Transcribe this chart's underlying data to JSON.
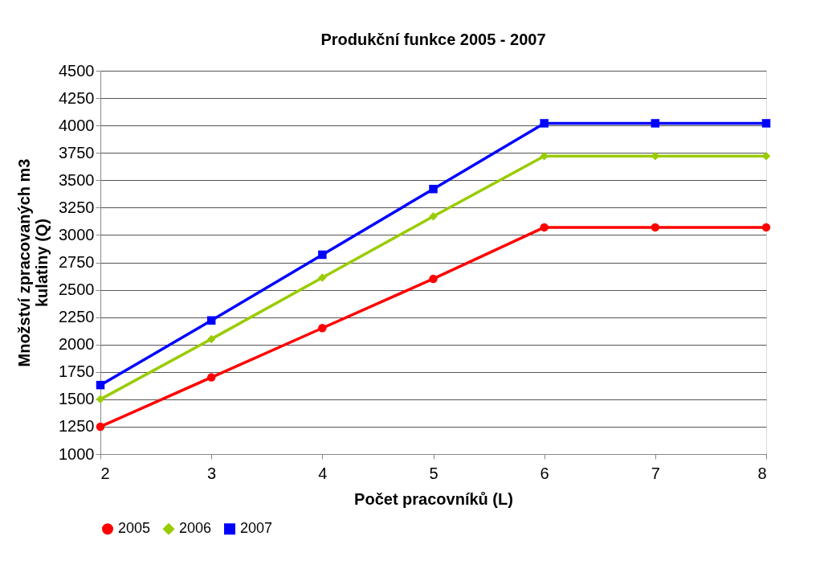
{
  "chart_data": {
    "type": "line",
    "title": "Produkční funkce 2005 - 2007",
    "xlabel": "Počet pracovníků (L)",
    "ylabel": "Množství zpracovaných m3 kulatiny (Q)",
    "x": [
      2,
      3,
      4,
      5,
      6,
      7,
      8
    ],
    "series": [
      {
        "name": "2005",
        "color": "#ff0000",
        "marker": "circle",
        "values": [
          1250,
          1700,
          2150,
          2600,
          3070,
          3070,
          3070
        ]
      },
      {
        "name": "2006",
        "color": "#99cc00",
        "marker": "diamond",
        "values": [
          1500,
          2050,
          2610,
          3170,
          3720,
          3720,
          3720
        ]
      },
      {
        "name": "2007",
        "color": "#0000ff",
        "marker": "square",
        "values": [
          1630,
          2220,
          2820,
          3420,
          4020,
          4020,
          4020
        ]
      }
    ],
    "xlim": [
      2,
      8
    ],
    "xticks": [
      2,
      3,
      4,
      5,
      6,
      7,
      8
    ],
    "ylim": [
      1000,
      4500
    ],
    "yticks": [
      1000,
      1250,
      1500,
      1750,
      2000,
      2250,
      2500,
      2750,
      3000,
      3250,
      3500,
      3750,
      4000,
      4250,
      4500
    ],
    "grid": "y",
    "legend": "bottom",
    "line_style": "solid"
  }
}
